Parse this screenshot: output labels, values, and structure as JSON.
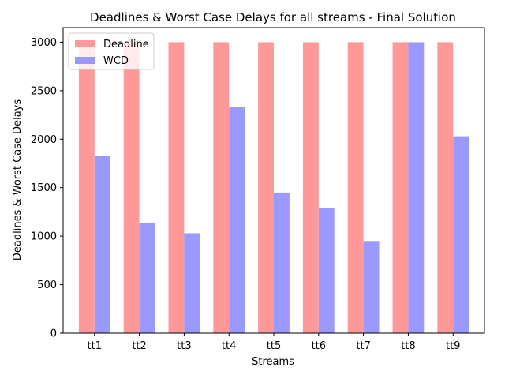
{
  "chart_data": {
    "type": "bar",
    "title": "Deadlines & Worst Case Delays for all streams - Final Solution",
    "xlabel": "Streams",
    "ylabel": "Deadlines & Worst Case Delays",
    "categories": [
      "tt1",
      "tt2",
      "tt3",
      "tt4",
      "tt5",
      "tt6",
      "tt7",
      "tt8",
      "tt9"
    ],
    "series": [
      {
        "name": "Deadline",
        "color": "#ff9999",
        "values": [
          3000,
          3000,
          3000,
          3000,
          3000,
          3000,
          3000,
          3000,
          3000
        ]
      },
      {
        "name": "WCD",
        "color": "#9999ff",
        "values": [
          1830,
          1140,
          1030,
          2330,
          1450,
          1290,
          950,
          3000,
          2030
        ]
      }
    ],
    "ylim": [
      0,
      3150
    ],
    "yticks": [
      0,
      500,
      1000,
      1500,
      2000,
      2500,
      3000
    ],
    "grid": false,
    "legend": "top-left"
  }
}
